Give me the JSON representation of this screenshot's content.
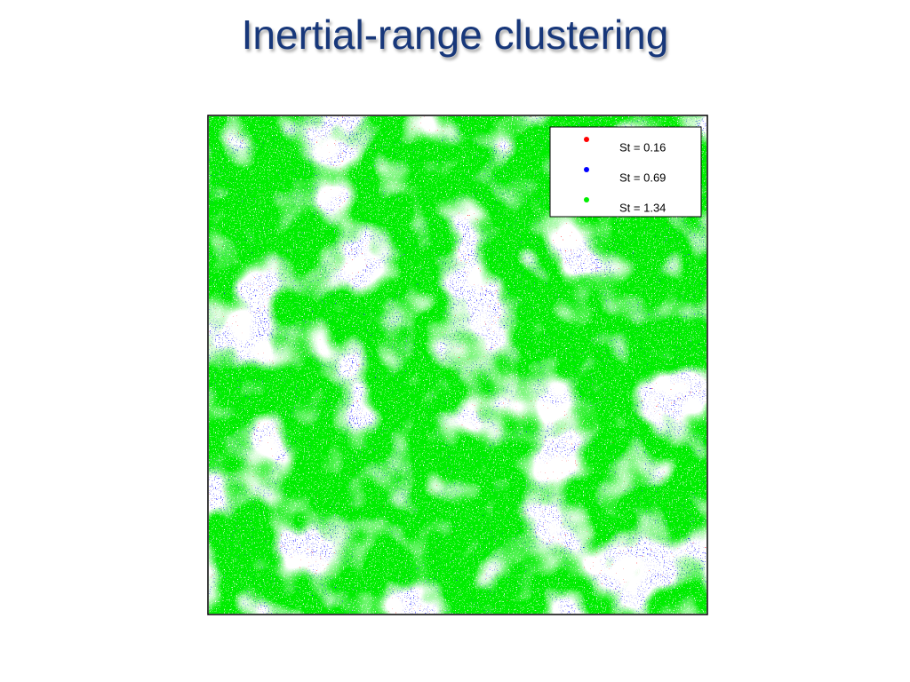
{
  "title": "Inertial-range clustering",
  "figure": {
    "legend": [
      {
        "label": "St = 0.16",
        "color": "#ff0000"
      },
      {
        "label": "St = 0.69",
        "color": "#0000ff"
      },
      {
        "label": "St = 1.34",
        "color": "#00ee00"
      }
    ]
  }
}
